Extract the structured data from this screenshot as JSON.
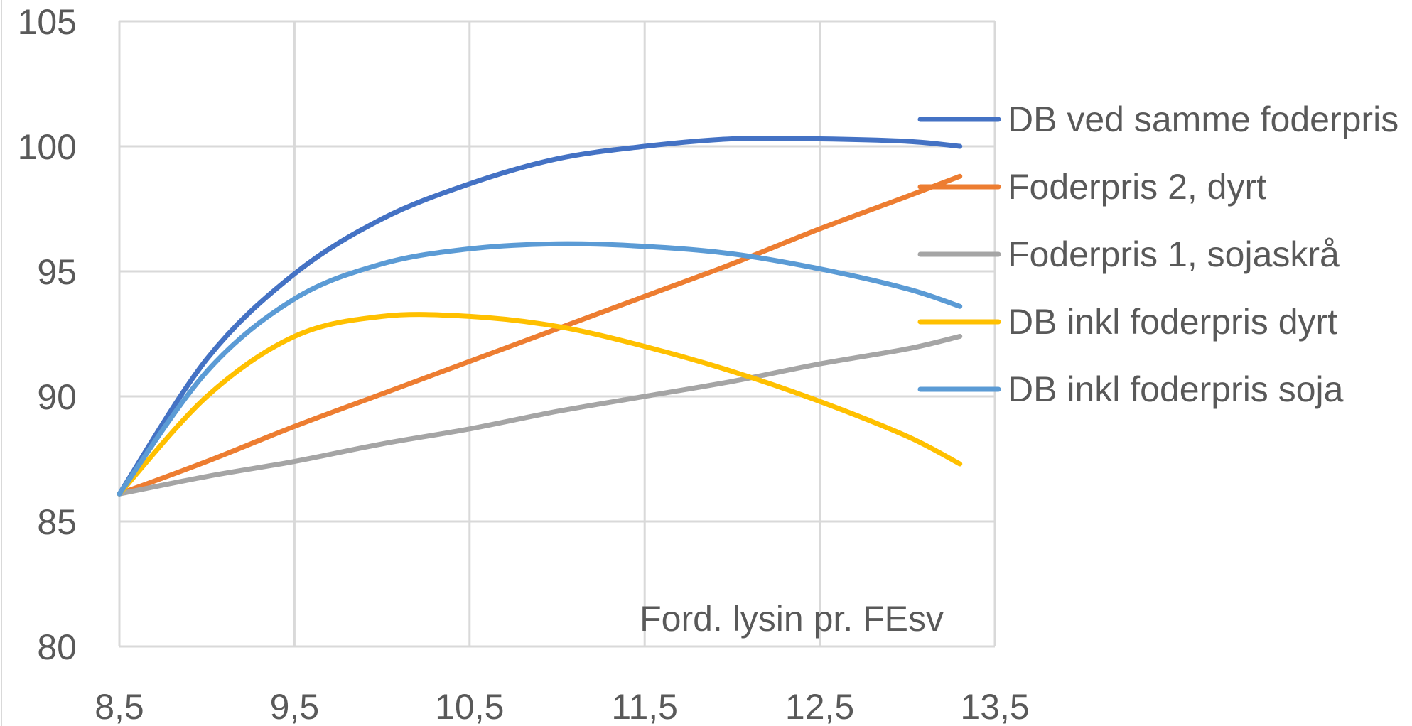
{
  "chart_data": {
    "type": "line",
    "xlabel": "Ford. lysin pr. FEsv",
    "ylabel": "",
    "xlim": [
      8.5,
      13.5
    ],
    "ylim": [
      80,
      105
    ],
    "x_ticks": [
      "8,5",
      "9,5",
      "10,5",
      "11,5",
      "12,5",
      "13,5"
    ],
    "y_ticks": [
      "80",
      "85",
      "90",
      "95",
      "100",
      "105"
    ],
    "grid": true,
    "legend_position": "right",
    "x": [
      8.5,
      9.0,
      9.5,
      10.0,
      10.5,
      11.0,
      11.5,
      12.0,
      12.5,
      13.0,
      13.3
    ],
    "series": [
      {
        "name": "DB ved samme foderpris",
        "color": "#4472C4",
        "values": [
          86.1,
          91.5,
          94.9,
          97.1,
          98.5,
          99.5,
          100.0,
          100.3,
          100.3,
          100.2,
          100.0
        ]
      },
      {
        "name": "Foderpris 2, dyrt",
        "color": "#ED7D31",
        "values": [
          86.1,
          87.4,
          88.8,
          90.1,
          91.4,
          92.7,
          94.0,
          95.3,
          96.7,
          98.0,
          98.8
        ]
      },
      {
        "name": "Foderpris 1, sojaskrå",
        "color": "#A5A5A5",
        "values": [
          86.1,
          86.8,
          87.4,
          88.1,
          88.7,
          89.4,
          90.0,
          90.6,
          91.3,
          91.9,
          92.4
        ]
      },
      {
        "name": "DB inkl foderpris dyrt",
        "color": "#FFC000",
        "values": [
          86.1,
          90.0,
          92.4,
          93.2,
          93.2,
          92.8,
          92.0,
          91.0,
          89.8,
          88.4,
          87.3
        ]
      },
      {
        "name": "DB inkl foderpris soja",
        "color": "#5B9BD5",
        "values": [
          86.1,
          91.0,
          93.9,
          95.3,
          95.9,
          96.1,
          96.0,
          95.7,
          95.1,
          94.3,
          93.6
        ]
      }
    ]
  }
}
